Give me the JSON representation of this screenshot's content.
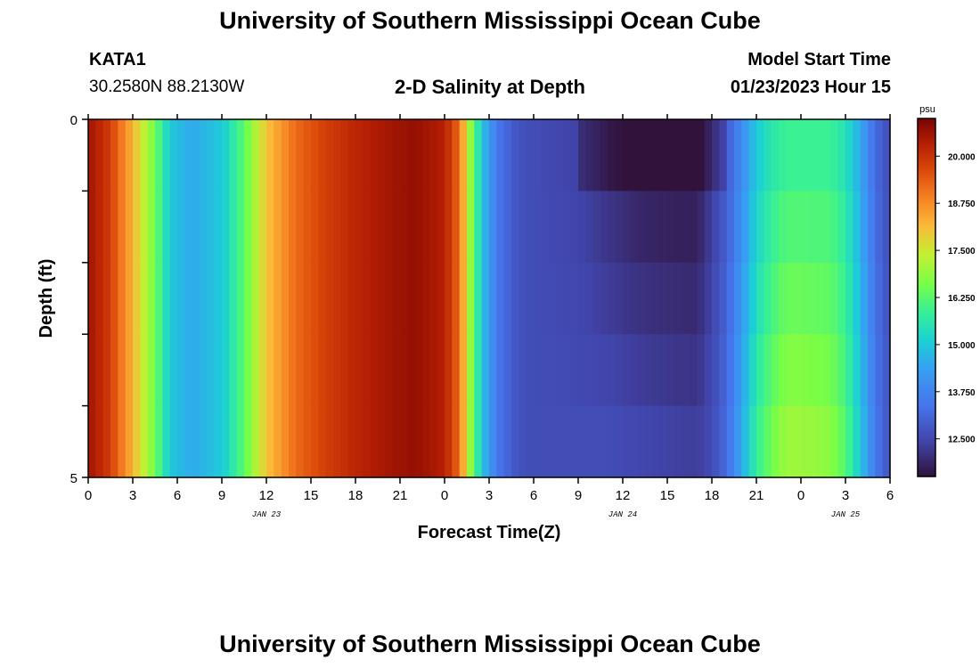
{
  "title": "University of Southern Mississippi Ocean Cube",
  "footer_title": "University of Southern Mississippi Ocean Cube",
  "station": {
    "name": "KATA1",
    "coords": "30.2580N  88.2130W"
  },
  "model": {
    "label": "Model Start Time",
    "value": "01/23/2023 Hour 15"
  },
  "chart_data": {
    "type": "heatmap",
    "title": "2-D Salinity at Depth",
    "xlabel": "Forecast Time(Z)",
    "ylabel": "Depth (ft)",
    "units": "psu",
    "x_range_hours": [
      0,
      54
    ],
    "x_ticks": [
      "0",
      "3",
      "6",
      "9",
      "12",
      "15",
      "18",
      "21",
      "0",
      "3",
      "6",
      "9",
      "12",
      "15",
      "18",
      "21",
      "0",
      "3",
      "6"
    ],
    "date_labels": [
      {
        "text": "JAN 23",
        "hour": 12
      },
      {
        "text": "JAN 24",
        "hour": 36
      },
      {
        "text": "JAN 25",
        "hour": 51
      }
    ],
    "y_ticks": [
      "0",
      "5"
    ],
    "ylim": [
      0,
      5
    ],
    "colorbar": {
      "min": 11.5,
      "max": 21.0,
      "labels": [
        "20.000",
        "18.750",
        "17.500",
        "16.250",
        "15.000",
        "13.750",
        "12.500"
      ],
      "label_values": [
        20.0,
        18.75,
        17.5,
        16.25,
        15.0,
        13.75,
        12.5
      ]
    },
    "depth_bins": 5,
    "salinity_profile": {
      "hours": [
        0,
        1.5,
        3,
        4.5,
        5.5,
        7,
        9,
        10.5,
        12,
        14,
        16,
        18,
        20,
        22,
        24,
        25,
        25.5,
        26.5,
        27.5,
        29,
        30,
        33,
        35,
        37,
        39,
        41,
        42,
        43,
        44,
        45,
        46,
        47,
        48,
        50,
        51,
        52,
        53,
        54
      ],
      "surface": [
        20.6,
        19.8,
        18.2,
        16.5,
        15.0,
        14.5,
        15.0,
        16.3,
        18.0,
        19.2,
        19.8,
        20.2,
        20.5,
        20.7,
        20.3,
        19.2,
        17.5,
        15.0,
        13.5,
        12.7,
        12.6,
        12.4,
        12.0,
        11.7,
        11.6,
        11.6,
        12.3,
        12.9,
        13.9,
        15.0,
        15.6,
        15.9,
        15.9,
        15.9,
        15.5,
        14.5,
        13.2,
        12.6
      ],
      "bottom": [
        20.6,
        19.8,
        18.2,
        16.5,
        15.0,
        14.5,
        15.0,
        16.3,
        18.0,
        19.2,
        19.8,
        20.2,
        20.5,
        20.7,
        20.3,
        19.2,
        17.5,
        15.0,
        13.5,
        12.7,
        12.6,
        12.6,
        12.6,
        12.5,
        12.4,
        12.3,
        12.6,
        13.2,
        14.5,
        15.8,
        16.5,
        17.0,
        17.0,
        16.8,
        16.2,
        15.0,
        13.5,
        12.7
      ]
    }
  }
}
